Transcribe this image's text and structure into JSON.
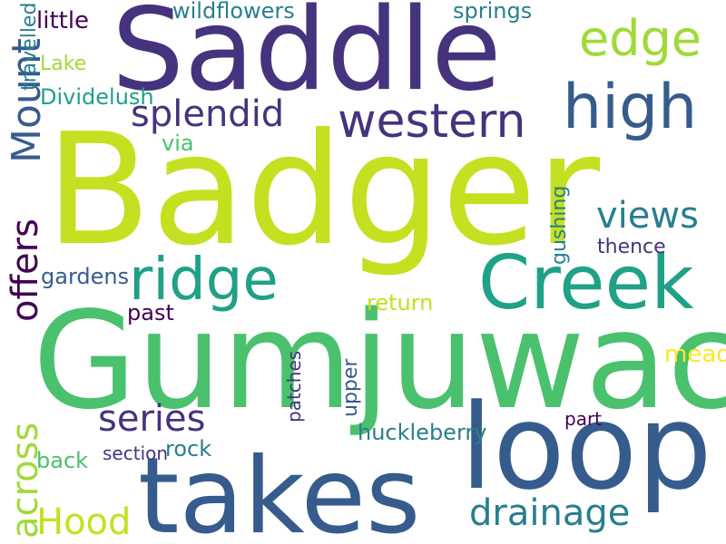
{
  "colors": {
    "background": "#ffffff",
    "palette": [
      "#440154",
      "#46337e",
      "#365c8d",
      "#277f8e",
      "#1fa187",
      "#4ac16d",
      "#a0da39",
      "#c5e021",
      "#fde725"
    ]
  },
  "words": [
    {
      "text": "Badger",
      "color": "#c5e021"
    },
    {
      "text": "Gumjuwac",
      "color": "#4ac16d"
    },
    {
      "text": "Saddle",
      "color": "#46337e"
    },
    {
      "text": "loop",
      "color": "#365c8d"
    },
    {
      "text": "takes",
      "color": "#365c8d"
    },
    {
      "text": "Creek",
      "color": "#1fa187"
    },
    {
      "text": "ridge",
      "color": "#1fa187"
    },
    {
      "text": "high",
      "color": "#365c8d"
    },
    {
      "text": "western",
      "color": "#46337e"
    },
    {
      "text": "edge",
      "color": "#a0da39"
    },
    {
      "text": "splendid",
      "color": "#46337e"
    },
    {
      "text": "views",
      "color": "#277f8e"
    },
    {
      "text": "Mount",
      "color": "#365c8d"
    },
    {
      "text": "series",
      "color": "#46337e"
    },
    {
      "text": "offers",
      "color": "#440154"
    },
    {
      "text": "across",
      "color": "#a0da39"
    },
    {
      "text": "drainage",
      "color": "#277f8e"
    },
    {
      "text": "Hood",
      "color": "#c5e021"
    },
    {
      "text": "little",
      "color": "#440154"
    },
    {
      "text": "travelled",
      "color": "#277f8e"
    },
    {
      "text": "wildflowers",
      "color": "#277f8e"
    },
    {
      "text": "springs",
      "color": "#277f8e"
    },
    {
      "text": "Lake",
      "color": "#a0da39"
    },
    {
      "text": "Dividelush",
      "color": "#1fa187"
    },
    {
      "text": "gushing",
      "color": "#277f8e"
    },
    {
      "text": "via",
      "color": "#4ac16d"
    },
    {
      "text": "thence",
      "color": "#46337e"
    },
    {
      "text": "gardens",
      "color": "#365c8d"
    },
    {
      "text": "return",
      "color": "#c5e021"
    },
    {
      "text": "past",
      "color": "#440154"
    },
    {
      "text": "patches",
      "color": "#46337e"
    },
    {
      "text": "upper",
      "color": "#365c8d"
    },
    {
      "text": "meadows",
      "color": "#fde725"
    },
    {
      "text": "huckleberry",
      "color": "#277f8e"
    },
    {
      "text": "part",
      "color": "#440154"
    },
    {
      "text": "back",
      "color": "#4ac16d"
    },
    {
      "text": "section",
      "color": "#46337e"
    },
    {
      "text": "rock",
      "color": "#277f8e"
    }
  ]
}
